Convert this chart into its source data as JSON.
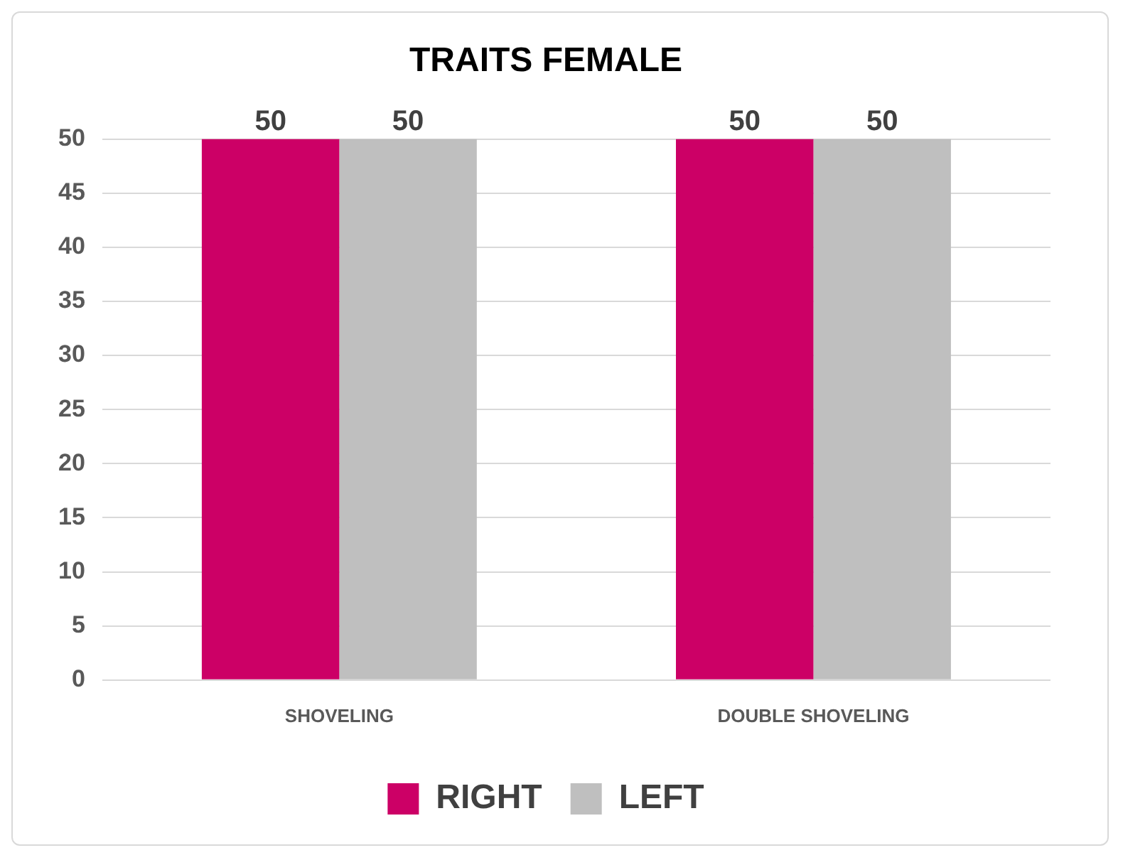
{
  "chart_data": {
    "type": "bar",
    "title": "TRAITS FEMALE",
    "categories": [
      "SHOVELING",
      "DOUBLE SHOVELING"
    ],
    "series": [
      {
        "name": "RIGHT",
        "color": "#cc0066",
        "values": [
          50,
          50
        ]
      },
      {
        "name": "LEFT",
        "color": "#bfbfbf",
        "values": [
          50,
          50
        ]
      }
    ],
    "ylim": [
      0,
      50
    ],
    "yticks": [
      0,
      5,
      10,
      15,
      20,
      25,
      30,
      35,
      40,
      45,
      50
    ],
    "grid": "y",
    "legend": "bottom",
    "data_labels": true
  }
}
